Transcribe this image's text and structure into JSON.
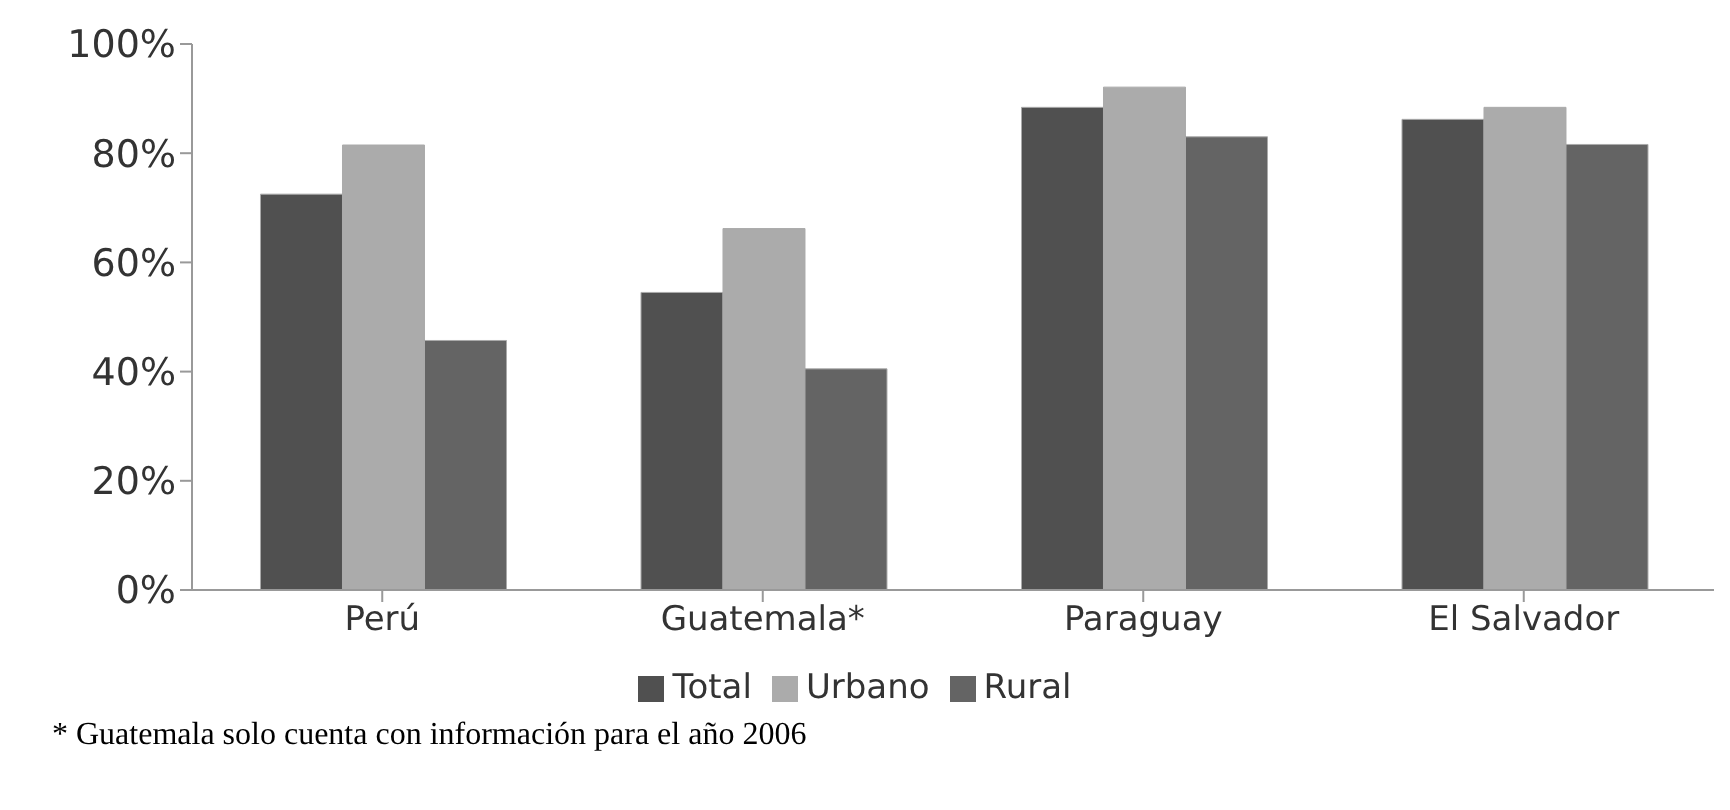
{
  "chart_data": {
    "type": "bar",
    "categories": [
      "Perú",
      "Guatemala*",
      "Paraguay",
      "El Salvador"
    ],
    "series": [
      {
        "name": "Total",
        "color": "#505050",
        "values": [
          72.5,
          54.5,
          88.4,
          86.2
        ]
      },
      {
        "name": "Urbano",
        "color": "#ababab",
        "values": [
          81.5,
          66.2,
          92.1,
          88.4
        ]
      },
      {
        "name": "Rural",
        "color": "#646464",
        "values": [
          45.7,
          40.5,
          83,
          81.6
        ]
      }
    ],
    "ylim": [
      0,
      100
    ],
    "yticks": [
      {
        "value": 0,
        "label": "0%"
      },
      {
        "value": 20,
        "label": "20%"
      },
      {
        "value": 40,
        "label": "40%"
      },
      {
        "value": 60,
        "label": "60%"
      },
      {
        "value": 80,
        "label": "80%"
      },
      {
        "value": 100,
        "label": "100%"
      }
    ],
    "grid": false,
    "legend": "bottom",
    "annotations": [
      "* Guatemala solo cuenta con información para el año 2006"
    ]
  }
}
